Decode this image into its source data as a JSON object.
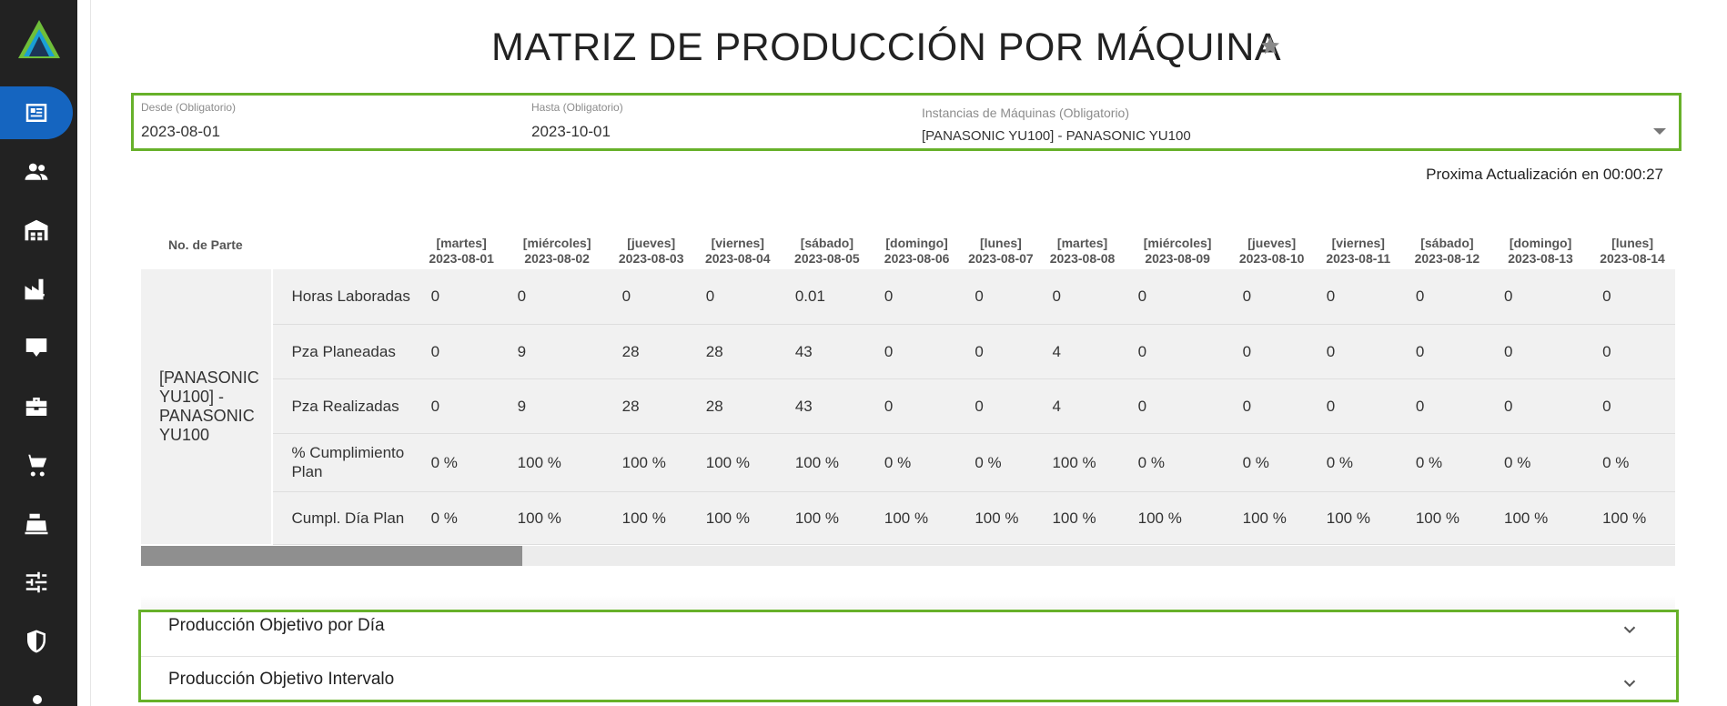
{
  "title": "MATRIZ DE PRODUCCIÓN POR MÁQUINA",
  "filters": {
    "from": {
      "label": "Desde (Obligatorio)",
      "value": "2023-08-01"
    },
    "to": {
      "label": "Hasta (Obligatorio)",
      "value": "2023-10-01"
    },
    "machines": {
      "label": "Instancias de Máquinas (Obligatorio)",
      "value": "[PANASONIC YU100] - PANASONIC YU100"
    }
  },
  "refresh_text": "Proxima Actualización en 00:00:27",
  "table": {
    "part_header": "No. de Parte",
    "part": "[PANASONIC YU100] - PANASONIC YU100",
    "days": [
      {
        "name": "[martes]",
        "date": "2023-08-01"
      },
      {
        "name": "[miércoles]",
        "date": "2023-08-02"
      },
      {
        "name": "[jueves]",
        "date": "2023-08-03"
      },
      {
        "name": "[viernes]",
        "date": "2023-08-04"
      },
      {
        "name": "[sábado]",
        "date": "2023-08-05"
      },
      {
        "name": "[domingo]",
        "date": "2023-08-06"
      },
      {
        "name": "[lunes]",
        "date": "2023-08-07"
      },
      {
        "name": "[martes]",
        "date": "2023-08-08"
      },
      {
        "name": "[miércoles]",
        "date": "2023-08-09"
      },
      {
        "name": "[jueves]",
        "date": "2023-08-10"
      },
      {
        "name": "[viernes]",
        "date": "2023-08-11"
      },
      {
        "name": "[sábado]",
        "date": "2023-08-12"
      },
      {
        "name": "[domingo]",
        "date": "2023-08-13"
      },
      {
        "name": "[lunes]",
        "date": "2023-08-14"
      }
    ],
    "rows": [
      {
        "label": "Horas Laboradas",
        "values": [
          "0",
          "0",
          "0",
          "0",
          "0.01",
          "0",
          "0",
          "0",
          "0",
          "0",
          "0",
          "0",
          "0",
          "0"
        ]
      },
      {
        "label": "Pza Planeadas",
        "values": [
          "0",
          "9",
          "28",
          "28",
          "43",
          "0",
          "0",
          "4",
          "0",
          "0",
          "0",
          "0",
          "0",
          "0"
        ]
      },
      {
        "label": "Pza Realizadas",
        "values": [
          "0",
          "9",
          "28",
          "28",
          "43",
          "0",
          "0",
          "4",
          "0",
          "0",
          "0",
          "0",
          "0",
          "0"
        ]
      },
      {
        "label": "% Cumplimiento Plan",
        "values": [
          "0 %",
          "100 %",
          "100 %",
          "100 %",
          "100 %",
          "0 %",
          "0 %",
          "100 %",
          "0 %",
          "0 %",
          "0 %",
          "0 %",
          "0 %",
          "0 %"
        ]
      },
      {
        "label": "Cumpl. Día Plan",
        "values": [
          "0 %",
          "100 %",
          "100 %",
          "100 %",
          "100 %",
          "100 %",
          "100 %",
          "100 %",
          "100 %",
          "100 %",
          "100 %",
          "100 %",
          "100 %",
          "100 %"
        ]
      }
    ]
  },
  "panels": [
    {
      "label": "Producción Objetivo por Día"
    },
    {
      "label": "Producción Objetivo Intervalo"
    }
  ],
  "colors": {
    "sidebar": "#222222",
    "active": "#1565c0",
    "highlight": "#67b12a"
  }
}
